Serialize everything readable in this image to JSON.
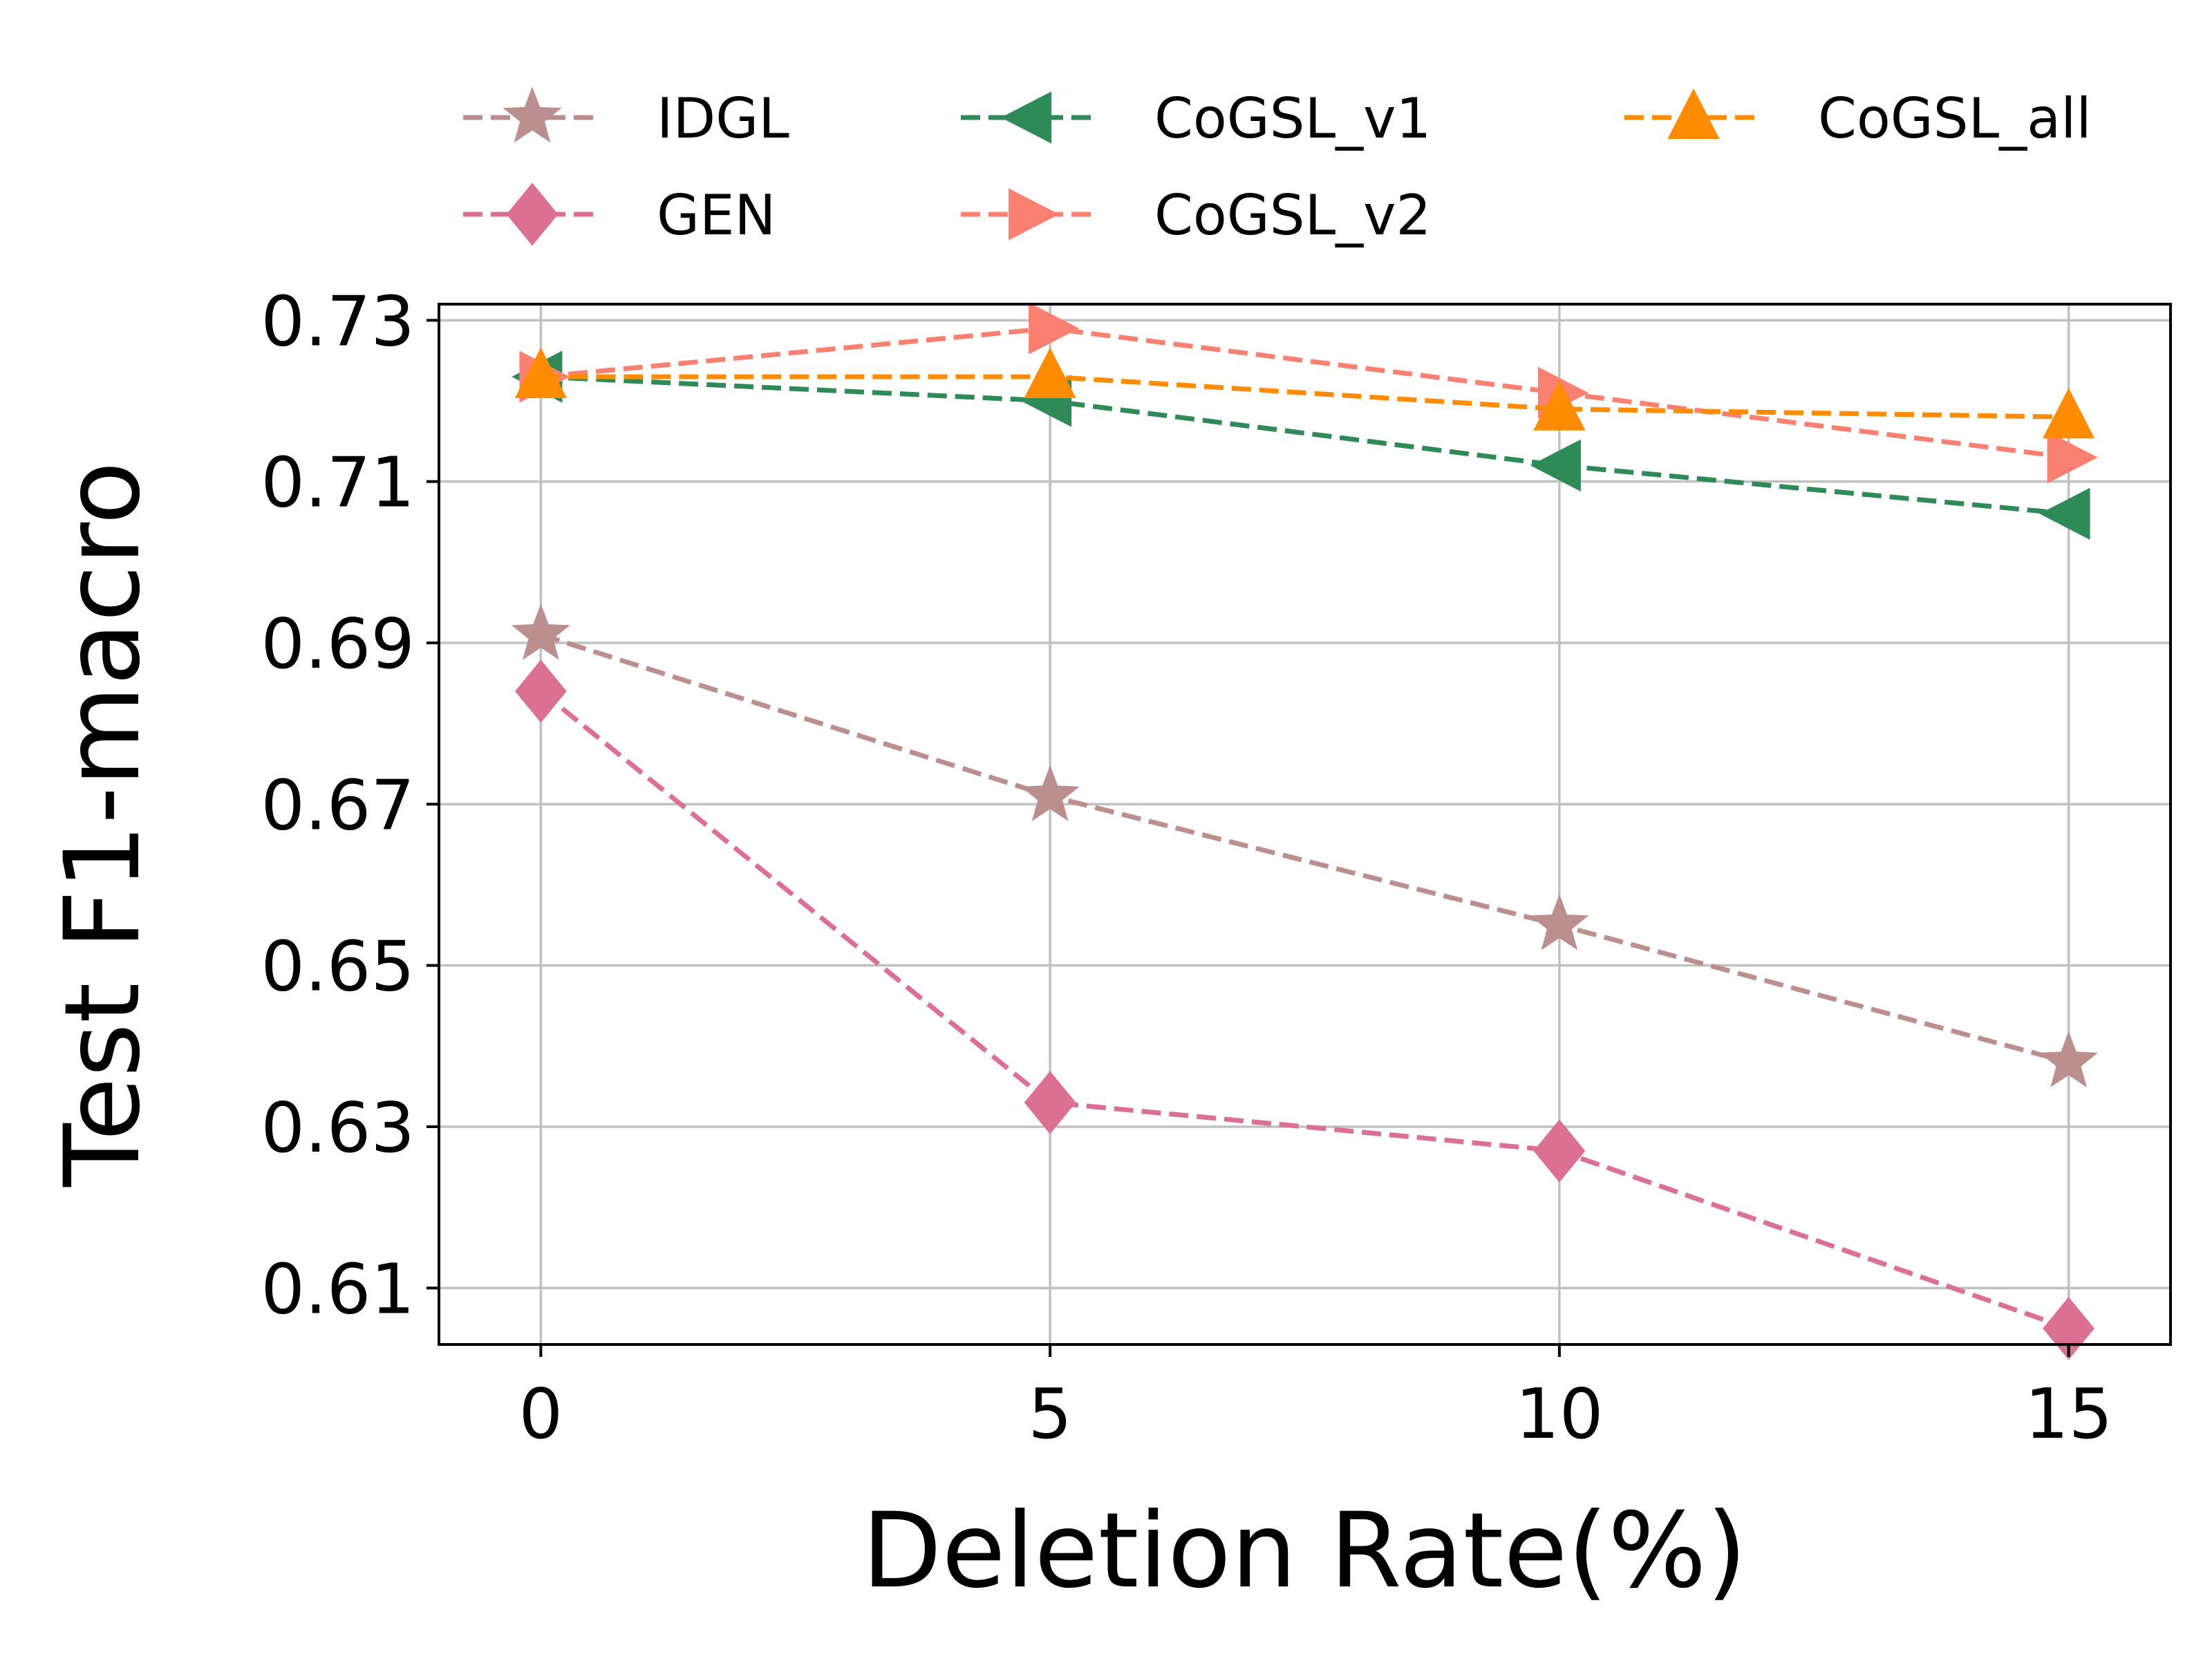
{
  "chart_data": {
    "type": "line",
    "xlabel": "Deletion Rate(%)",
    "ylabel": "Test F1-macro",
    "x": [
      0,
      5,
      10,
      15
    ],
    "xticks": [
      "0",
      "5",
      "10",
      "15"
    ],
    "yticks": [
      "0.61",
      "0.63",
      "0.65",
      "0.67",
      "0.69",
      "0.71",
      "0.73"
    ],
    "xlim": [
      -1,
      16
    ],
    "ylim": [
      0.603,
      0.732
    ],
    "grid": true,
    "legend_position": "top",
    "series": [
      {
        "name": "IDGL",
        "values": [
          0.691,
          0.671,
          0.655,
          0.638
        ],
        "color": "#bc8f8f",
        "marker": "star"
      },
      {
        "name": "GEN",
        "values": [
          0.684,
          0.633,
          0.627,
          0.605
        ],
        "color": "#db7093",
        "marker": "diamond"
      },
      {
        "name": "CoGSL_v1",
        "values": [
          0.723,
          0.72,
          0.712,
          0.706
        ],
        "color": "#2e8b57",
        "marker": "triangle-left"
      },
      {
        "name": "CoGSL_v2",
        "values": [
          0.723,
          0.729,
          0.721,
          0.713
        ],
        "color": "#fa8072",
        "marker": "triangle-right"
      },
      {
        "name": "CoGSL_all",
        "values": [
          0.723,
          0.723,
          0.719,
          0.718
        ],
        "color": "#ff8c00",
        "marker": "triangle-up"
      }
    ]
  }
}
